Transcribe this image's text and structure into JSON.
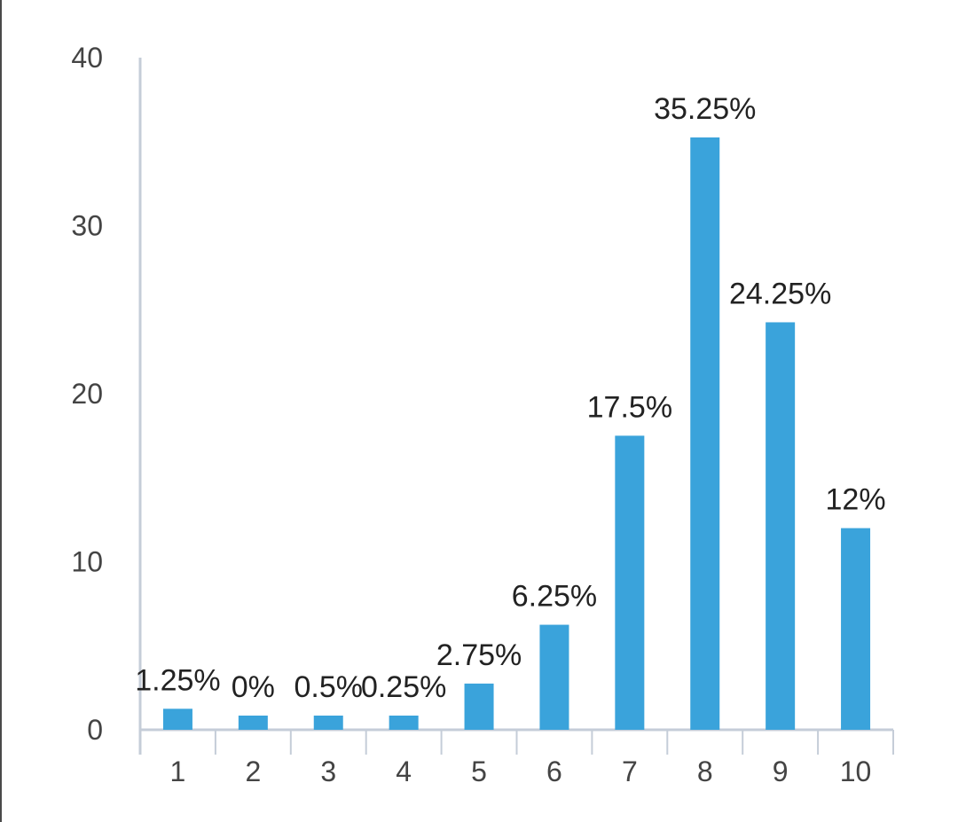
{
  "chart_data": {
    "type": "bar",
    "title": "",
    "xlabel": "",
    "ylabel": "",
    "categories": [
      "1",
      "2",
      "3",
      "4",
      "5",
      "6",
      "7",
      "8",
      "9",
      "10"
    ],
    "values": [
      1.25,
      0,
      0.5,
      0.25,
      2.75,
      6.25,
      17.5,
      35.25,
      24.25,
      12
    ],
    "data_labels": [
      "1.25%",
      "0%",
      "0.5%",
      "0.25%",
      "2.75%",
      "6.25%",
      "17.5%",
      "35.25%",
      "24.25%",
      "12%"
    ],
    "ylim": [
      0,
      40
    ],
    "yticks": [
      "0",
      "10",
      "20",
      "30",
      "40"
    ],
    "grid": false,
    "legend": "none",
    "bar_color": "#3aa3db",
    "axis_color": "#c5cdd8"
  }
}
